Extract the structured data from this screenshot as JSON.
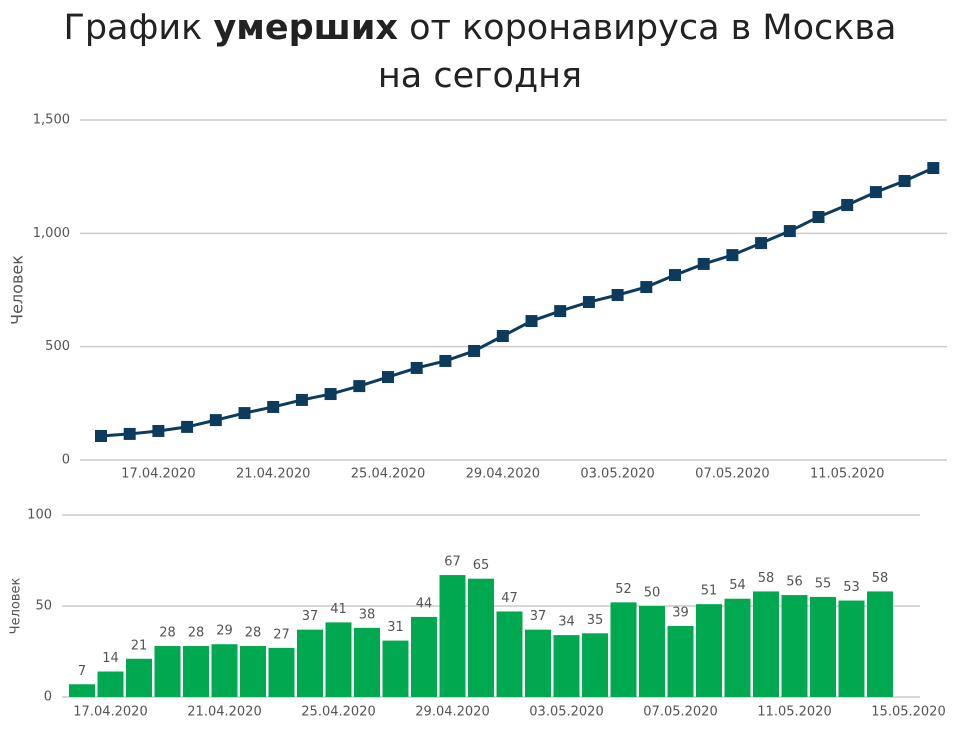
{
  "page_title": {
    "before": "График",
    "bold": "умерших",
    "after": "от коронавируса в Москва на сегодня"
  },
  "chart_data": [
    {
      "type": "line",
      "y_label": "Человек",
      "categories": [
        null,
        null,
        "17.04.2020",
        null,
        null,
        null,
        "21.04.2020",
        null,
        null,
        null,
        "25.04.2020",
        null,
        null,
        null,
        "29.04.2020",
        null,
        null,
        null,
        "03.05.2020",
        null,
        null,
        null,
        "07.05.2020",
        null,
        null,
        null,
        "11.05.2020",
        null,
        null,
        null
      ],
      "series": [
        {
          "name": null,
          "color": "#0d3b5e",
          "values": [
            106,
            115,
            128,
            146,
            176,
            207,
            234,
            265,
            291,
            326,
            366,
            406,
            437,
            481,
            547,
            613,
            657,
            697,
            728,
            763,
            816,
            865,
            904,
            957,
            1010,
            1072,
            1125,
            1182,
            1231,
            1288
          ]
        }
      ],
      "ylim": [
        0,
        1500
      ],
      "yticks": [
        0,
        500,
        {
          "value": 1000,
          "label": "1,000"
        },
        {
          "value": 1500,
          "label": "1,500"
        }
      ],
      "grid": true
    },
    {
      "type": "bar",
      "y_label": "Человек",
      "categories": [
        null,
        "17.04.2020",
        null,
        null,
        null,
        "21.04.2020",
        null,
        null,
        null,
        "25.04.2020",
        null,
        null,
        null,
        "29.04.2020",
        null,
        null,
        null,
        "03.05.2020",
        null,
        null,
        null,
        "07.05.2020",
        null,
        null,
        null,
        "11.05.2020",
        null,
        null,
        null,
        "15.05.2020"
      ],
      "values": [
        7,
        14,
        21,
        28,
        28,
        29,
        28,
        27,
        37,
        41,
        38,
        31,
        44,
        67,
        65,
        47,
        37,
        34,
        35,
        52,
        50,
        39,
        51,
        54,
        58,
        56,
        55,
        53,
        58,
        null
      ],
      "color": "#00a94f",
      "ylim": [
        0,
        100
      ],
      "yticks": [
        0,
        50,
        100
      ],
      "grid": true
    }
  ]
}
